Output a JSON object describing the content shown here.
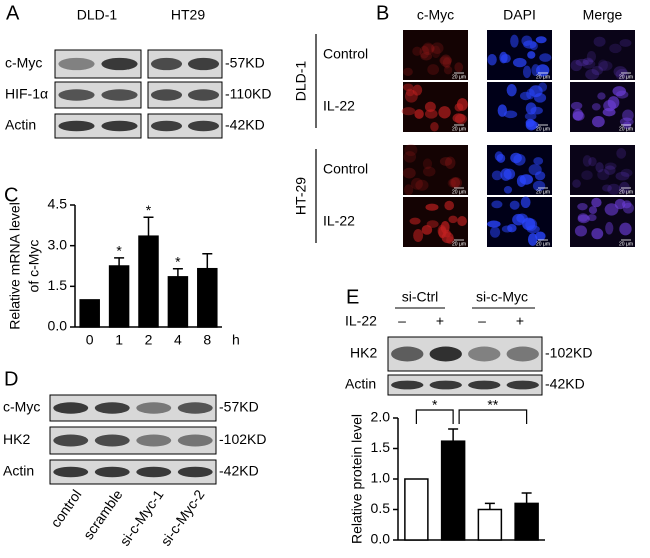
{
  "panel_a": {
    "label": "A",
    "cell_lines": [
      "DLD-1",
      "HT29"
    ],
    "rows": [
      "c-Myc",
      "HIF-1α",
      "Actin"
    ],
    "sizes": [
      "-57KD",
      "-110KD",
      "-42KD"
    ]
  },
  "panel_b": {
    "label": "B",
    "columns": [
      "c-Myc",
      "DAPI",
      "Merge"
    ],
    "groups": [
      {
        "name": "DLD-1",
        "rows": [
          "Control",
          "IL-22"
        ]
      },
      {
        "name": "HT-29",
        "rows": [
          "Control",
          "IL-22"
        ]
      }
    ],
    "scale_label": "20 μm"
  },
  "panel_c": {
    "label": "C"
  },
  "panel_d": {
    "label": "D",
    "rows": [
      "c-Myc",
      "HK2",
      "Actin"
    ],
    "sizes": [
      "-57KD",
      "-102KD",
      "-42KD"
    ],
    "lanes": [
      "control",
      "scramble",
      "si-c-Myc-1",
      "si-c-Myc-2"
    ]
  },
  "panel_e": {
    "label": "E",
    "groups": [
      "si-Ctrl",
      "si-c-Myc"
    ],
    "treatment": "IL-22",
    "signs": [
      "–",
      "+",
      "–",
      "+"
    ],
    "rows": [
      "HK2",
      "Actin"
    ],
    "sizes": [
      "-102KD",
      "-42KD"
    ]
  },
  "chart_data": [
    {
      "type": "bar",
      "y_label": [
        "Relative mRNA level",
        "of c-Myc"
      ],
      "x_label": "h",
      "categories": [
        "0",
        "1",
        "2",
        "4",
        "8"
      ],
      "values": [
        1,
        2.25,
        3.35,
        1.85,
        2.15
      ],
      "errors": [
        0,
        0.3,
        0.7,
        0.3,
        0.55
      ],
      "significance": [
        null,
        "*",
        "*",
        "*",
        null
      ],
      "color": "#000000",
      "ylim": [
        0,
        4.5
      ],
      "yticks": [
        {
          "value": 0,
          "label": "0.0"
        },
        1.5,
        {
          "value": 3,
          "label": "3.0"
        },
        4.5
      ]
    },
    {
      "type": "bar",
      "y_label": [
        "Relative protein level"
      ],
      "categories": [
        null,
        null,
        null,
        null
      ],
      "values": [
        1,
        1.62,
        0.5,
        0.6
      ],
      "errors": [
        0,
        0.2,
        0.1,
        0.17
      ],
      "colors": [
        "#ffffff",
        "#000000",
        "#ffffff",
        "#000000"
      ],
      "annotations": [
        {
          "text": "*",
          "between": [
            0,
            1
          ]
        },
        {
          "text": "**",
          "between": [
            1,
            3
          ]
        }
      ],
      "ylim": [
        0,
        2
      ],
      "yticks": [
        {
          "value": 0,
          "label": "0.0"
        },
        0.5,
        {
          "value": 1,
          "label": "1.0"
        },
        1.5,
        {
          "value": 2,
          "label": "2.0"
        }
      ]
    }
  ]
}
